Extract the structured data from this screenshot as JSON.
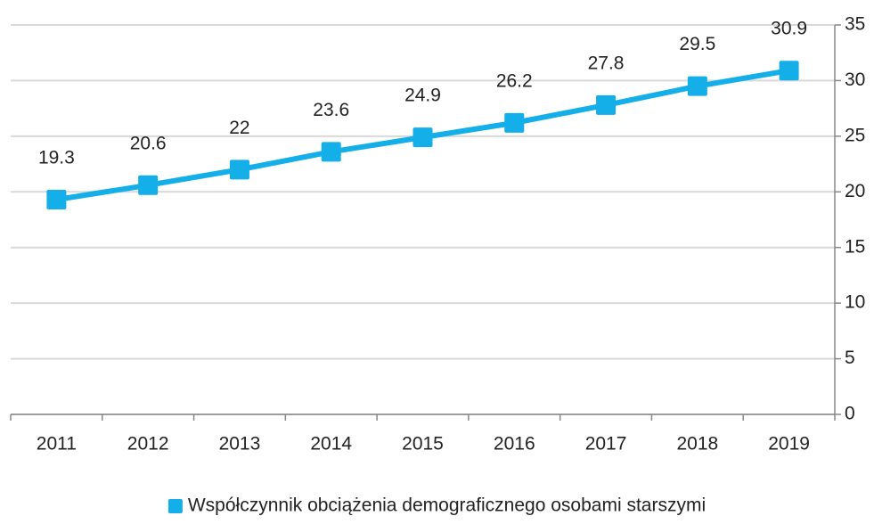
{
  "chart_data": {
    "type": "line",
    "categories": [
      "2011",
      "2012",
      "2013",
      "2014",
      "2015",
      "2016",
      "2017",
      "2018",
      "2019"
    ],
    "series": [
      {
        "name": "Współczynnik obciążenia demograficznego osobami starszymi",
        "color": "#14aee8",
        "values": [
          19.3,
          20.6,
          22,
          23.6,
          24.9,
          26.2,
          27.8,
          29.5,
          30.9
        ]
      }
    ],
    "ylim": [
      0,
      35
    ],
    "yticks": [
      0,
      5,
      10,
      15,
      20,
      25,
      30,
      35
    ],
    "grid": true,
    "legend": "bottom"
  }
}
